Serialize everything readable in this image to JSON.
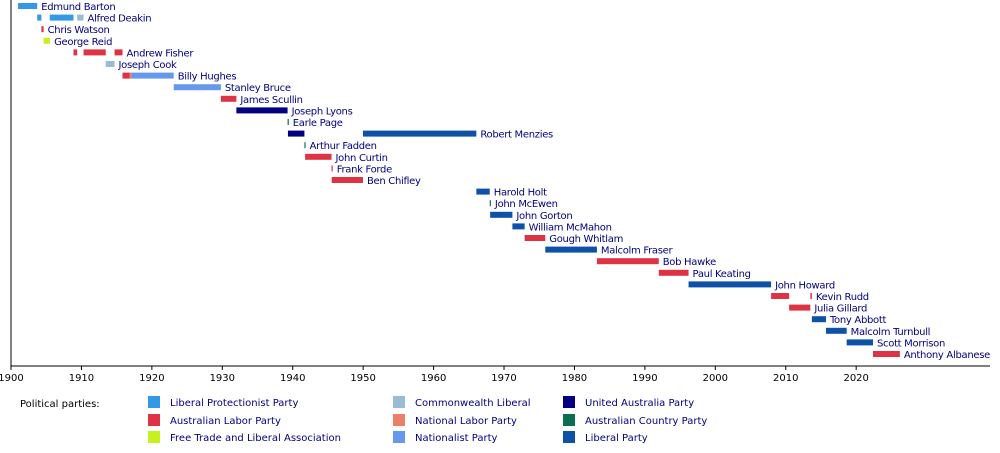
{
  "chart_data": {
    "type": "timeline",
    "xlim": [
      1900,
      2039
    ],
    "xticks": [
      1900,
      1910,
      1920,
      1930,
      1940,
      1950,
      1960,
      1970,
      1980,
      1990,
      2000,
      2010,
      2020
    ],
    "legend_title": "Political parties:",
    "series": [
      {
        "name": "Liberal Protectionist Party",
        "color": "#3399e6"
      },
      {
        "name": "Australian Labor Party",
        "color": "#dd3344"
      },
      {
        "name": "Free Trade and Liberal Association",
        "color": "#c8f01e"
      },
      {
        "name": "Commonwealth Liberal",
        "color": "#99bbd4"
      },
      {
        "name": "National Labor Party",
        "color": "#e8806a"
      },
      {
        "name": "Nationalist Party",
        "color": "#6699ee"
      },
      {
        "name": "United Australia Party",
        "color": "#000080"
      },
      {
        "name": "Australian Country Party",
        "color": "#0b6e4f"
      },
      {
        "name": "Liberal Party",
        "color": "#0d52a6"
      }
    ],
    "rows": [
      {
        "name": "Edmund Barton",
        "terms": [
          {
            "start": 1901.0,
            "end": 1903.72,
            "party": "Liberal Protectionist Party"
          }
        ]
      },
      {
        "name": "Alfred Deakin",
        "terms": [
          {
            "start": 1903.72,
            "end": 1904.32,
            "party": "Liberal Protectionist Party"
          },
          {
            "start": 1905.5,
            "end": 1908.87,
            "party": "Liberal Protectionist Party"
          },
          {
            "start": 1909.4,
            "end": 1910.3,
            "party": "Commonwealth Liberal"
          }
        ]
      },
      {
        "name": "Chris Watson",
        "terms": [
          {
            "start": 1904.32,
            "end": 1904.63,
            "party": "Australian Labor Party"
          }
        ]
      },
      {
        "name": "George Reid",
        "terms": [
          {
            "start": 1904.63,
            "end": 1905.55,
            "party": "Free Trade and Liberal Association"
          }
        ]
      },
      {
        "name": "Andrew Fisher",
        "terms": [
          {
            "start": 1908.87,
            "end": 1909.4,
            "party": "Australian Labor Party"
          },
          {
            "start": 1910.3,
            "end": 1913.45,
            "party": "Australian Labor Party"
          },
          {
            "start": 1914.7,
            "end": 1915.83,
            "party": "Australian Labor Party"
          }
        ]
      },
      {
        "name": "Joseph Cook",
        "terms": [
          {
            "start": 1913.45,
            "end": 1914.7,
            "party": "Commonwealth Liberal"
          }
        ]
      },
      {
        "name": "Billy Hughes",
        "terms": [
          {
            "start": 1915.83,
            "end": 1916.87,
            "party": "Australian Labor Party"
          },
          {
            "start": 1916.87,
            "end": 1917.1,
            "party": "National Labor Party"
          },
          {
            "start": 1917.1,
            "end": 1923.1,
            "party": "Nationalist Party"
          }
        ]
      },
      {
        "name": "Stanley Bruce",
        "terms": [
          {
            "start": 1923.1,
            "end": 1929.8,
            "party": "Nationalist Party"
          }
        ]
      },
      {
        "name": "James Scullin",
        "terms": [
          {
            "start": 1929.8,
            "end": 1932.0,
            "party": "Australian Labor Party"
          }
        ]
      },
      {
        "name": "Joseph Lyons",
        "terms": [
          {
            "start": 1932.0,
            "end": 1939.27,
            "party": "United Australia Party"
          }
        ]
      },
      {
        "name": "Earle Page",
        "terms": [
          {
            "start": 1939.27,
            "end": 1939.32,
            "party": "Australian Country Party"
          }
        ]
      },
      {
        "name": "Robert Menzies",
        "terms": [
          {
            "start": 1939.32,
            "end": 1941.66,
            "party": "United Australia Party"
          },
          {
            "start": 1949.97,
            "end": 1966.07,
            "party": "Liberal Party"
          }
        ]
      },
      {
        "name": "Arthur Fadden",
        "terms": [
          {
            "start": 1941.66,
            "end": 1941.76,
            "party": "Australian Country Party"
          }
        ]
      },
      {
        "name": "John Curtin",
        "terms": [
          {
            "start": 1941.76,
            "end": 1945.51,
            "party": "Australian Labor Party"
          }
        ]
      },
      {
        "name": "Frank Forde",
        "terms": [
          {
            "start": 1945.51,
            "end": 1945.53,
            "party": "Australian Labor Party"
          }
        ]
      },
      {
        "name": "Ben Chifley",
        "terms": [
          {
            "start": 1945.53,
            "end": 1949.97,
            "party": "Australian Labor Party"
          }
        ]
      },
      {
        "name": "Harold Holt",
        "terms": [
          {
            "start": 1966.07,
            "end": 1967.97,
            "party": "Liberal Party"
          }
        ]
      },
      {
        "name": "John McEwen",
        "terms": [
          {
            "start": 1967.97,
            "end": 1968.03,
            "party": "Australian Country Party"
          }
        ]
      },
      {
        "name": "John Gorton",
        "terms": [
          {
            "start": 1968.03,
            "end": 1971.19,
            "party": "Liberal Party"
          }
        ]
      },
      {
        "name": "William McMahon",
        "terms": [
          {
            "start": 1971.19,
            "end": 1972.93,
            "party": "Liberal Party"
          }
        ]
      },
      {
        "name": "Gough Whitlam",
        "terms": [
          {
            "start": 1972.93,
            "end": 1975.86,
            "party": "Australian Labor Party"
          }
        ]
      },
      {
        "name": "Malcolm Fraser",
        "terms": [
          {
            "start": 1975.86,
            "end": 1983.19,
            "party": "Liberal Party"
          }
        ]
      },
      {
        "name": "Bob Hawke",
        "terms": [
          {
            "start": 1983.19,
            "end": 1991.97,
            "party": "Australian Labor Party"
          }
        ]
      },
      {
        "name": "Paul Keating",
        "terms": [
          {
            "start": 1991.97,
            "end": 1996.2,
            "party": "Australian Labor Party"
          }
        ]
      },
      {
        "name": "John Howard",
        "terms": [
          {
            "start": 1996.2,
            "end": 2007.92,
            "party": "Liberal Party"
          }
        ]
      },
      {
        "name": "Kevin Rudd",
        "terms": [
          {
            "start": 2007.92,
            "end": 2010.48,
            "party": "Australian Labor Party"
          },
          {
            "start": 2013.49,
            "end": 2013.71,
            "party": "Australian Labor Party"
          }
        ]
      },
      {
        "name": "Julia Gillard",
        "terms": [
          {
            "start": 2010.48,
            "end": 2013.49,
            "party": "Australian Labor Party"
          }
        ]
      },
      {
        "name": "Tony Abbott",
        "terms": [
          {
            "start": 2013.71,
            "end": 2015.71,
            "party": "Liberal Party"
          }
        ]
      },
      {
        "name": "Malcolm Turnbull",
        "terms": [
          {
            "start": 2015.71,
            "end": 2018.65,
            "party": "Liberal Party"
          }
        ]
      },
      {
        "name": "Scott Morrison",
        "terms": [
          {
            "start": 2018.65,
            "end": 2022.39,
            "party": "Liberal Party"
          }
        ]
      },
      {
        "name": "Anthony Albanese",
        "terms": [
          {
            "start": 2022.39,
            "end": 2026.2,
            "party": "Australian Labor Party"
          }
        ]
      }
    ]
  }
}
